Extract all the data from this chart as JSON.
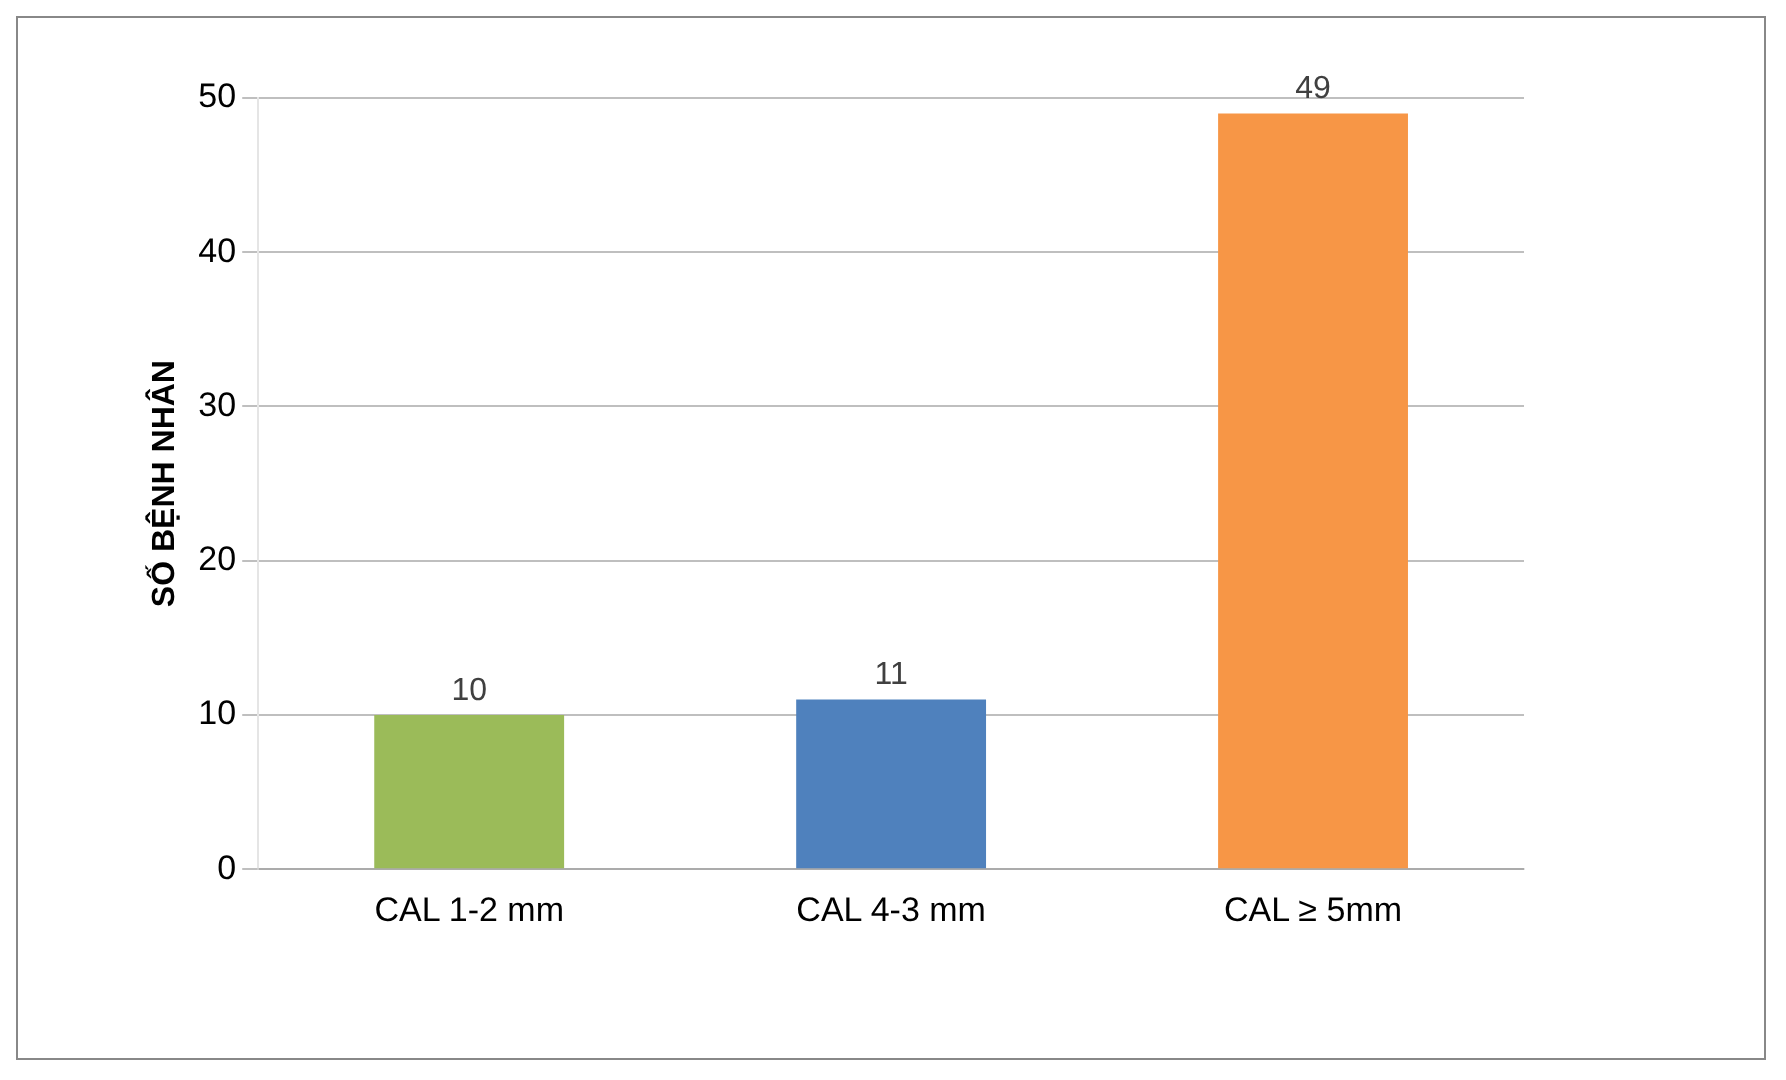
{
  "chart_data": {
    "type": "bar",
    "ylabel": "SỐ BỆNH NHÂN",
    "categories": [
      "CAL 1-2 mm",
      "CAL 4-3 mm",
      "CAL ≥ 5mm"
    ],
    "values": [
      10,
      11,
      49
    ],
    "colors": [
      "#9bbb59",
      "#4f81bd",
      "#f79646"
    ],
    "ylim": [
      0,
      50
    ],
    "yticks": [
      0,
      10,
      20,
      30,
      40,
      50
    ],
    "grid": "y",
    "data_labels": true
  }
}
